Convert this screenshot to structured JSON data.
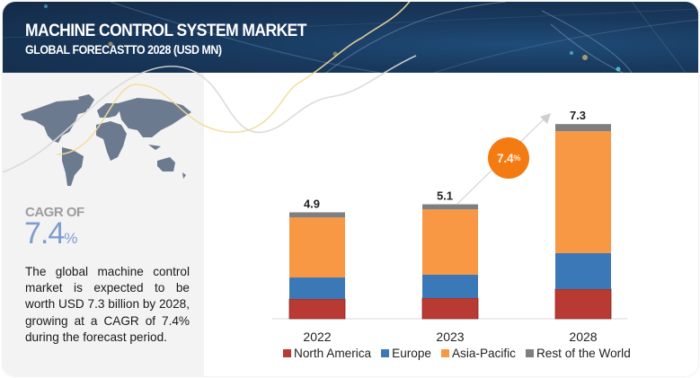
{
  "header": {
    "title": "MACHINE CONTROL SYSTEM MARKET",
    "subtitle": "GLOBAL FORECASTTO 2028 (USD MN)"
  },
  "left_panel": {
    "map_icon": "world-map",
    "cagr_label": "CAGR OF",
    "cagr_value": "7.4",
    "cagr_unit": "%",
    "description": "The global machine control market is expected to be worth USD 7.3 billion by 2028, growing at a CAGR of 7.4% during the forecast period."
  },
  "cagr_bubble": {
    "value": "7.4",
    "unit": "%"
  },
  "colors": {
    "north_america": "#b83a33",
    "europe": "#3b78b7",
    "asia_pacific": "#f89844",
    "rest_of_world": "#7f7f7f",
    "bubble": "#f47a12",
    "header_bg": "#18385c"
  },
  "chart_data": {
    "type": "bar",
    "stacked": true,
    "title": "Machine Control System Market, Global Forecast to 2028 (USD MN)",
    "xlabel": "",
    "ylabel": "",
    "categories": [
      "2022",
      "2023",
      "2028"
    ],
    "totals": [
      "4.9",
      "5.1",
      "7.3"
    ],
    "total_values": [
      4.9,
      5.1,
      7.3
    ],
    "series": [
      {
        "name": "North America",
        "color": "#b83a33",
        "values": [
          0.91,
          0.92,
          1.11
        ]
      },
      {
        "name": "Europe",
        "color": "#3b78b7",
        "values": [
          0.99,
          1.04,
          1.35
        ]
      },
      {
        "name": "Asia-Pacific",
        "color": "#f89844",
        "values": [
          2.76,
          2.91,
          4.57
        ]
      },
      {
        "name": "Rest of the World",
        "color": "#7f7f7f",
        "values": [
          0.24,
          0.23,
          0.27
        ]
      }
    ],
    "ylim": [
      0,
      7.3
    ],
    "grid": false,
    "legend_position": "bottom",
    "annotation": "7.4%"
  }
}
